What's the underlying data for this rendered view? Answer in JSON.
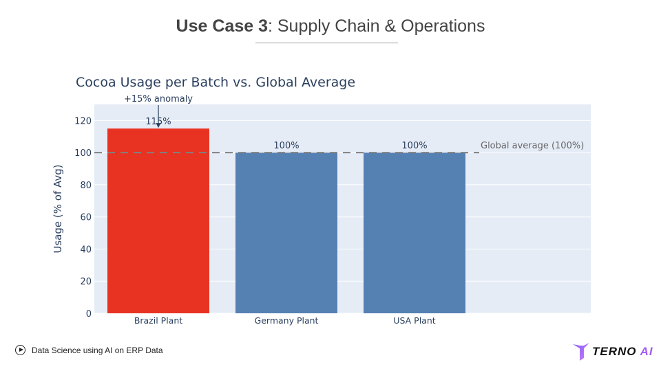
{
  "slide": {
    "title_bold": "Use Case 3",
    "title_rest": ": Supply Chain & Operations"
  },
  "footer": {
    "text": "Data Science using AI on ERP Data",
    "icon": "play-circle-icon"
  },
  "logo": {
    "text": "TERNO",
    "text_accent": "AI"
  },
  "chart_data": {
    "type": "bar",
    "title": "Cocoa Usage per Batch vs. Global Average",
    "ylabel": "Usage (% of Avg)",
    "xlabel": "",
    "categories": [
      "Brazil Plant",
      "Germany Plant",
      "USA Plant"
    ],
    "values": [
      115,
      100,
      100
    ],
    "data_labels": [
      "115%",
      "100%",
      "100%"
    ],
    "bar_colors": [
      "#e83323",
      "#5580b2",
      "#5580b2"
    ],
    "ylim": [
      0,
      130
    ],
    "yticks": [
      0,
      20,
      40,
      60,
      80,
      100,
      120
    ],
    "grid": true,
    "plot_bg": "#e5ecf6",
    "reference_line": {
      "y": 100,
      "label": "Global average (100%)",
      "style": "dashed",
      "color": "#808080"
    },
    "annotation": {
      "text": "+15% anomaly",
      "category": "Brazil Plant",
      "y": 115,
      "arrow": true
    }
  }
}
